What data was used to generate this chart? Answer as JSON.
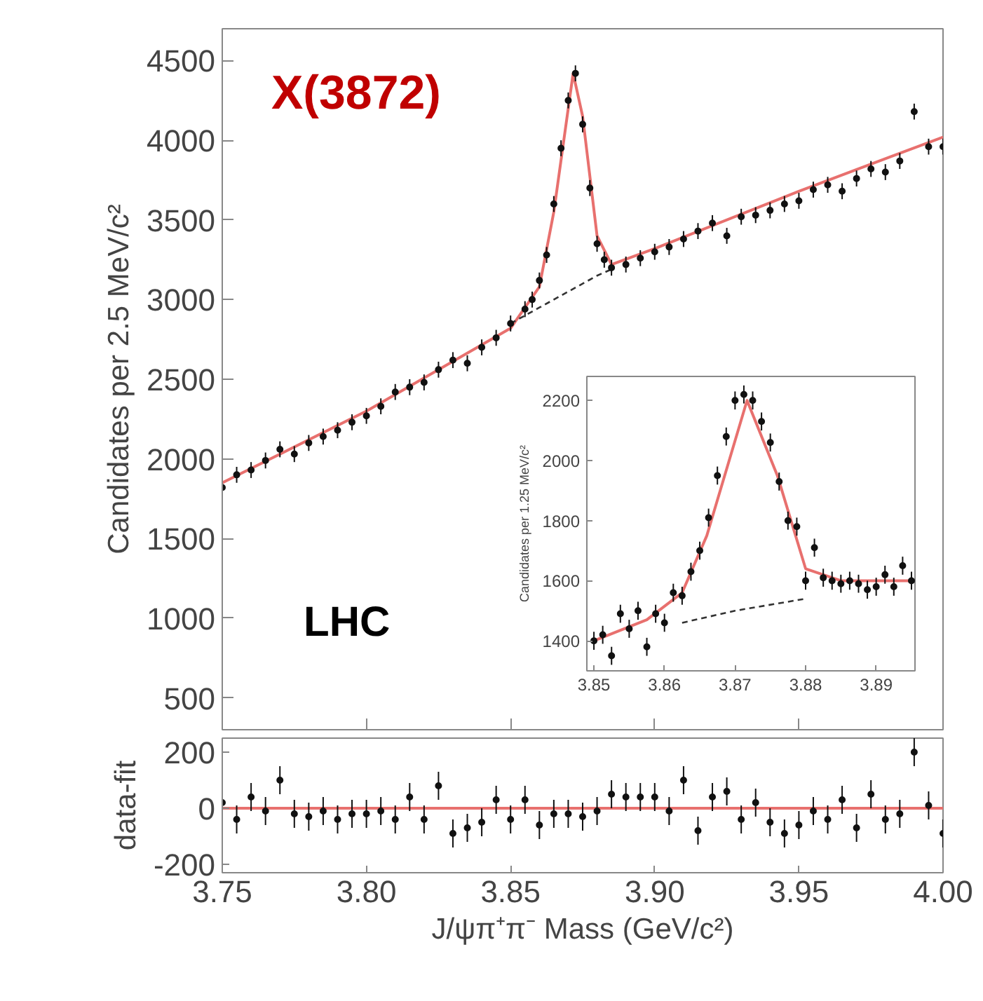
{
  "chart_data": [
    {
      "type": "scatter",
      "title": "X(3872)",
      "ylabel": "Candidates per 2.5 MeV/c²",
      "annotations": [
        "LHC"
      ],
      "xlim": [
        3.75,
        4.0
      ],
      "ylim": [
        300,
        4700
      ],
      "xticks": [
        3.75,
        3.8,
        3.85,
        3.9,
        3.95,
        4.0
      ],
      "yticks": [
        500,
        1000,
        1500,
        2000,
        2500,
        3000,
        3500,
        4000,
        4500
      ],
      "tick_labels": "y",
      "grid": false,
      "series": [
        {
          "marker": "circle",
          "color": "#111111",
          "x": [
            3.75,
            3.755,
            3.76,
            3.765,
            3.77,
            3.775,
            3.78,
            3.785,
            3.79,
            3.795,
            3.8,
            3.805,
            3.81,
            3.815,
            3.82,
            3.825,
            3.83,
            3.835,
            3.84,
            3.845,
            3.85,
            3.855,
            3.8575,
            3.86,
            3.8625,
            3.865,
            3.8675,
            3.87,
            3.8725,
            3.875,
            3.8775,
            3.88,
            3.8825,
            3.885,
            3.89,
            3.895,
            3.9,
            3.905,
            3.91,
            3.915,
            3.92,
            3.925,
            3.93,
            3.935,
            3.94,
            3.945,
            3.95,
            3.955,
            3.96,
            3.965,
            3.97,
            3.975,
            3.98,
            3.985,
            3.99,
            3.995,
            4.0
          ],
          "values": [
            1820,
            1900,
            1930,
            1990,
            2060,
            2030,
            2100,
            2140,
            2180,
            2230,
            2270,
            2330,
            2420,
            2450,
            2480,
            2560,
            2620,
            2600,
            2700,
            2760,
            2850,
            2940,
            3000,
            3120,
            3280,
            3600,
            3950,
            4250,
            4420,
            4100,
            3700,
            3350,
            3250,
            3200,
            3220,
            3260,
            3300,
            3330,
            3380,
            3430,
            3480,
            3400,
            3520,
            3530,
            3560,
            3600,
            3620,
            3690,
            3720,
            3680,
            3760,
            3820,
            3800,
            3870,
            4180,
            3960,
            3960
          ],
          "errors": [
            50,
            50,
            50,
            50,
            50,
            50,
            50,
            50,
            50,
            50,
            50,
            50,
            50,
            50,
            50,
            50,
            50,
            50,
            50,
            50,
            50,
            50,
            50,
            50,
            50,
            50,
            50,
            50,
            50,
            50,
            50,
            50,
            50,
            50,
            50,
            50,
            50,
            50,
            50,
            50,
            50,
            50,
            50,
            50,
            50,
            50,
            50,
            50,
            50,
            50,
            50,
            50,
            50,
            50,
            50,
            50,
            50
          ]
        },
        {
          "type": "line",
          "line_style": "solid",
          "color": "#e8706e",
          "x": [
            3.75,
            3.8,
            3.85,
            3.86,
            3.865,
            3.8717,
            3.875,
            3.88,
            3.885,
            3.9,
            3.95,
            4.0
          ],
          "values": [
            1850,
            2300,
            2820,
            3080,
            3550,
            4420,
            4150,
            3400,
            3220,
            3320,
            3680,
            4020
          ]
        },
        {
          "type": "line",
          "line_style": "dashed",
          "color": "#333333",
          "x": [
            3.85,
            3.86,
            3.87,
            3.88,
            3.885
          ],
          "values": [
            2850,
            2950,
            3050,
            3150,
            3190
          ]
        }
      ]
    },
    {
      "type": "scatter",
      "ylabel": "Candidates per 1.25 MeV/c²",
      "xlim": [
        3.849,
        3.8955
      ],
      "ylim": [
        1300,
        2280
      ],
      "xticks": [
        3.85,
        3.86,
        3.87,
        3.88,
        3.89
      ],
      "yticks": [
        1400,
        1600,
        1800,
        2000,
        2200
      ],
      "grid": false,
      "series": [
        {
          "marker": "circle",
          "color": "#111111",
          "x": [
            3.85,
            3.85125,
            3.8525,
            3.85375,
            3.855,
            3.85625,
            3.8575,
            3.85875,
            3.86,
            3.86125,
            3.8625,
            3.86375,
            3.865,
            3.86625,
            3.8675,
            3.86875,
            3.87,
            3.87125,
            3.8725,
            3.87375,
            3.875,
            3.87625,
            3.8775,
            3.87875,
            3.88,
            3.88125,
            3.8825,
            3.88375,
            3.885,
            3.88625,
            3.8875,
            3.88875,
            3.89,
            3.89125,
            3.8925,
            3.89375,
            3.895
          ],
          "values": [
            1400,
            1420,
            1350,
            1490,
            1440,
            1500,
            1380,
            1490,
            1460,
            1560,
            1550,
            1630,
            1700,
            1810,
            1950,
            2080,
            2200,
            2220,
            2200,
            2130,
            2060,
            1930,
            1800,
            1780,
            1600,
            1710,
            1610,
            1600,
            1590,
            1600,
            1590,
            1570,
            1580,
            1620,
            1580,
            1650,
            1600
          ],
          "errors": [
            30,
            30,
            30,
            30,
            30,
            30,
            30,
            30,
            30,
            30,
            30,
            30,
            30,
            30,
            30,
            30,
            30,
            30,
            30,
            30,
            30,
            30,
            30,
            30,
            30,
            30,
            30,
            30,
            30,
            30,
            30,
            30,
            30,
            30,
            30,
            30,
            30
          ]
        },
        {
          "type": "line",
          "line_style": "solid",
          "color": "#e8706e",
          "x": [
            3.85,
            3.8575,
            3.8625,
            3.866,
            3.8717,
            3.876,
            3.88,
            3.885,
            3.895
          ],
          "values": [
            1400,
            1470,
            1560,
            1750,
            2200,
            1950,
            1640,
            1600,
            1600
          ]
        },
        {
          "type": "line",
          "line_style": "dashed",
          "color": "#333333",
          "x": [
            3.8625,
            3.87,
            3.88
          ],
          "values": [
            1460,
            1500,
            1540
          ]
        }
      ]
    },
    {
      "type": "scatter",
      "ylabel": "data-fit",
      "xlabel": "J/ψπ⁺π⁻ Mass (GeV/c²)",
      "xlim": [
        3.75,
        4.0
      ],
      "ylim": [
        -230,
        250
      ],
      "xticks": [
        3.75,
        {
          "value": 3.8,
          "label": "3.80"
        },
        3.85,
        {
          "value": 3.9,
          "label": "3.90"
        },
        3.95,
        {
          "value": 4.0,
          "label": "4.00"
        }
      ],
      "yticks": [
        -200,
        0,
        200
      ],
      "grid": false,
      "series": [
        {
          "marker": "circle",
          "color": "#111111",
          "x": [
            3.75,
            3.755,
            3.76,
            3.765,
            3.77,
            3.775,
            3.78,
            3.785,
            3.79,
            3.795,
            3.8,
            3.805,
            3.81,
            3.815,
            3.82,
            3.825,
            3.83,
            3.835,
            3.84,
            3.845,
            3.85,
            3.855,
            3.86,
            3.865,
            3.87,
            3.875,
            3.88,
            3.885,
            3.89,
            3.895,
            3.9,
            3.905,
            3.91,
            3.915,
            3.92,
            3.925,
            3.93,
            3.935,
            3.94,
            3.945,
            3.95,
            3.955,
            3.96,
            3.965,
            3.97,
            3.975,
            3.98,
            3.985,
            3.99,
            3.995,
            4.0
          ],
          "values": [
            20,
            -40,
            40,
            -10,
            100,
            -20,
            -30,
            -10,
            -40,
            -20,
            -20,
            -10,
            -40,
            40,
            -40,
            80,
            -90,
            -70,
            -50,
            30,
            -40,
            30,
            -60,
            -20,
            -20,
            -30,
            -10,
            50,
            40,
            40,
            40,
            -10,
            100,
            -80,
            40,
            60,
            -40,
            20,
            -50,
            -90,
            -60,
            -10,
            -40,
            30,
            -70,
            50,
            -40,
            -20,
            200,
            10,
            -90
          ],
          "errors": [
            50,
            50,
            50,
            50,
            50,
            50,
            50,
            50,
            50,
            50,
            50,
            50,
            50,
            50,
            50,
            50,
            50,
            50,
            50,
            50,
            50,
            50,
            50,
            50,
            50,
            50,
            50,
            50,
            50,
            50,
            50,
            50,
            50,
            50,
            50,
            50,
            50,
            50,
            50,
            50,
            50,
            50,
            50,
            50,
            50,
            50,
            50,
            50,
            50,
            50,
            50
          ]
        },
        {
          "type": "line",
          "line_style": "solid",
          "color": "#e8706e",
          "x": [
            3.75,
            4.0
          ],
          "values": [
            0,
            0
          ]
        }
      ]
    }
  ]
}
